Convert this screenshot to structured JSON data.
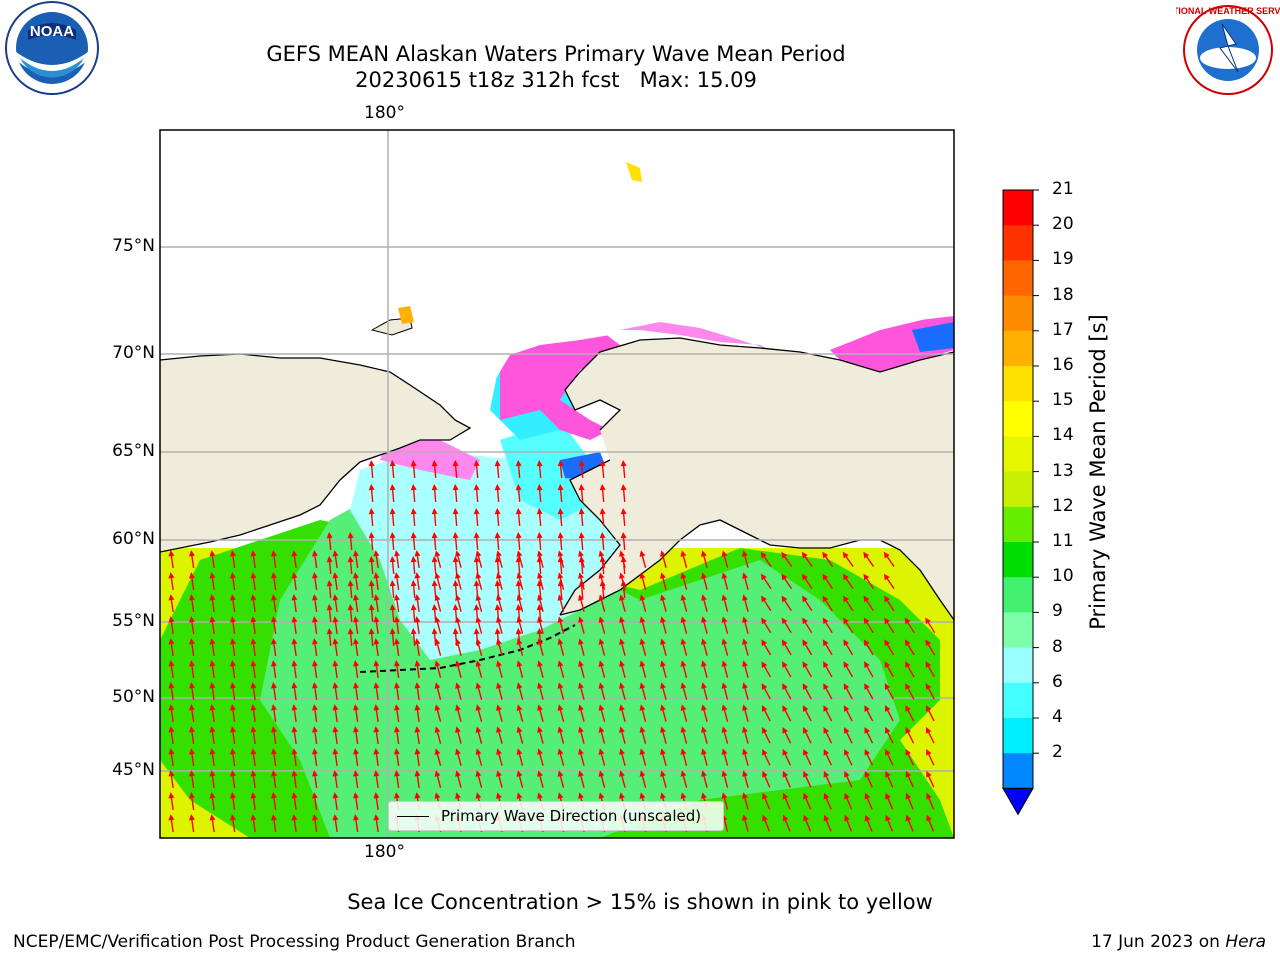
{
  "header": {
    "title_line1": "GEFS MEAN Alaskan Waters Primary Wave Mean Period",
    "title_line2": "20230615 t18z 312h fcst   Max: 15.09"
  },
  "logos": {
    "left": "NOAA",
    "right": "NATIONAL WEATHER SERVICE"
  },
  "map": {
    "lon_label_top": "180°",
    "lon_label_bottom": "180°",
    "lat_labels": [
      "75°N",
      "70°N",
      "65°N",
      "60°N",
      "55°N",
      "50°N",
      "45°N"
    ],
    "legend_label": "Primary Wave Direction (unscaled)",
    "arrow_color": "#ff0000",
    "land_color": "#efecdc"
  },
  "colorbar": {
    "title": "Primary Wave Mean Period [s]",
    "ticks": [
      "21",
      "20",
      "19",
      "18",
      "17",
      "16",
      "15",
      "14",
      "13",
      "12",
      "11",
      "10",
      "9",
      "8",
      "6",
      "4",
      "2"
    ],
    "colors": [
      "#ff0000",
      "#ff3300",
      "#ff6600",
      "#ff8c00",
      "#ffb000",
      "#ffe000",
      "#ffff00",
      "#e6f500",
      "#c8f000",
      "#66ee00",
      "#00dd00",
      "#44f070",
      "#7dffaa",
      "#99ffff",
      "#44ffff",
      "#00eeff",
      "#0088ff"
    ],
    "under_color": "#0000ff"
  },
  "note": "Sea Ice Concentration > 15% is shown in pink to yellow",
  "footer": {
    "left": "NCEP/EMC/Verification Post Processing Product Generation Branch",
    "right_prefix": "17 Jun 2023 on ",
    "right_host": "Hera"
  }
}
